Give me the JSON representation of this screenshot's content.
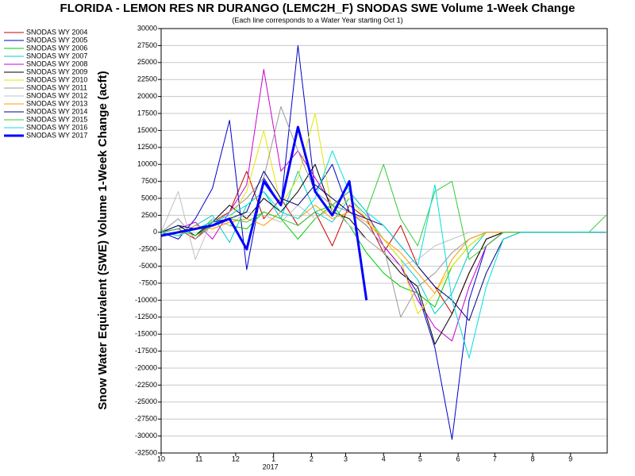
{
  "chart_data": {
    "type": "line",
    "title": "FLORIDA - LEMON RES NR DURANGO (LEMC2H_F) SNODAS SWE Volume 1-Week Change",
    "subtitle": "(Each line corresponds to a Water Year starting Oct 1)",
    "ylabel": "Snow Water Equivalent (SWE) Volume 1-Week Change (acft)",
    "year_label": "2017",
    "x": [
      0,
      14,
      28,
      42,
      56,
      70,
      84,
      98,
      112,
      126,
      140,
      154,
      168,
      182,
      196,
      210,
      224,
      238,
      252,
      266,
      280,
      294,
      308,
      322,
      336,
      350,
      364
    ],
    "xlim": [
      0,
      365
    ],
    "xticks": [
      {
        "value": 0,
        "label": "10"
      },
      {
        "value": 31,
        "label": "11"
      },
      {
        "value": 61,
        "label": "12"
      },
      {
        "value": 92,
        "label": "1"
      },
      {
        "value": 123,
        "label": "2"
      },
      {
        "value": 151,
        "label": "3"
      },
      {
        "value": 182,
        "label": "4"
      },
      {
        "value": 212,
        "label": "5"
      },
      {
        "value": 243,
        "label": "6"
      },
      {
        "value": 273,
        "label": "7"
      },
      {
        "value": 304,
        "label": "8"
      },
      {
        "value": 335,
        "label": "9"
      }
    ],
    "ylim": [
      -32500,
      30000
    ],
    "yticks": [
      30000,
      27500,
      25000,
      22500,
      20000,
      17500,
      15000,
      12500,
      10000,
      7500,
      5000,
      2500,
      0,
      -2500,
      -5000,
      -7500,
      -10000,
      -12500,
      -15000,
      -17500,
      -20000,
      -22500,
      -25000,
      -27500,
      -30000,
      -32500
    ],
    "grid": true,
    "series": [
      {
        "name": "SNODAS WY 2004",
        "color": "#cc0000",
        "values": [
          0,
          500,
          -1000,
          1500,
          3000,
          9000,
          2000,
          5000,
          1000,
          3000,
          -2000,
          4000,
          2000,
          -3000,
          1000,
          -5000,
          -8000,
          -12000,
          -6000,
          -1000,
          0,
          0,
          0,
          0,
          0,
          0,
          0
        ]
      },
      {
        "name": "SNODAS WY 2005",
        "color": "#0000cc",
        "values": [
          0,
          -1000,
          2000,
          6500,
          16500,
          -5500,
          8000,
          4000,
          27500,
          6000,
          10000,
          3000,
          1000,
          -2000,
          -5000,
          -9000,
          -17000,
          -30500,
          -10000,
          -2000,
          0,
          0,
          0,
          0,
          0,
          0,
          0
        ]
      },
      {
        "name": "SNODAS WY 2006",
        "color": "#00cc00",
        "values": [
          0,
          1000,
          -500,
          2000,
          1000,
          500,
          3000,
          2000,
          -1000,
          2000,
          4000,
          1000,
          -3000,
          -6000,
          -8000,
          -9000,
          -11000,
          -5000,
          -2000,
          0,
          0,
          0,
          0,
          0,
          0,
          0,
          0
        ]
      },
      {
        "name": "SNODAS WY 2007",
        "color": "#00cccc",
        "values": [
          0,
          -500,
          1000,
          2500,
          -1500,
          4000,
          6000,
          2000,
          9000,
          3000,
          1500,
          5000,
          2500,
          -1000,
          -4000,
          -7000,
          -12000,
          -9000,
          -3000,
          0,
          0,
          0,
          0,
          0,
          0,
          0,
          0
        ]
      },
      {
        "name": "SNODAS WY 2008",
        "color": "#cc00cc",
        "values": [
          0,
          500,
          1500,
          -1000,
          3000,
          7000,
          24000,
          9000,
          12000,
          8000,
          4000,
          6000,
          3000,
          -2000,
          -5000,
          -10000,
          -14000,
          -16000,
          -8000,
          -2000,
          0,
          0,
          0,
          0,
          0,
          0,
          0
        ]
      },
      {
        "name": "SNODAS WY 2009",
        "color": "#000000",
        "values": [
          0,
          1000,
          -500,
          1500,
          4000,
          2000,
          5000,
          3000,
          6000,
          10000,
          3000,
          2000,
          -1000,
          -3000,
          -6000,
          -8000,
          -16500,
          -12000,
          -6000,
          -1000,
          0,
          0,
          0,
          0,
          0,
          0,
          0
        ]
      },
      {
        "name": "SNODAS WY 2010",
        "color": "#e6e600",
        "values": [
          0,
          -500,
          500,
          1000,
          2000,
          6000,
          15000,
          4000,
          8000,
          17500,
          3000,
          5000,
          2000,
          -1000,
          -4000,
          -12000,
          -9000,
          -5000,
          -2000,
          0,
          0,
          0,
          0,
          0,
          0,
          0,
          0
        ]
      },
      {
        "name": "SNODAS WY 2011",
        "color": "#999999",
        "values": [
          0,
          2000,
          -1000,
          1000,
          3000,
          5000,
          8000,
          18500,
          12000,
          6000,
          4000,
          3000,
          1000,
          -2000,
          -12500,
          -8000,
          -6000,
          -3000,
          -1000,
          0,
          0,
          0,
          0,
          0,
          0,
          0,
          0
        ]
      },
      {
        "name": "SNODAS WY 2012",
        "color": "#c0c0c0",
        "values": [
          0,
          6000,
          -4000,
          2000,
          1000,
          3000,
          2500,
          1500,
          4000,
          2000,
          3500,
          1000,
          -1000,
          -3000,
          -5000,
          -4000,
          -2000,
          -1000,
          0,
          0,
          0,
          0,
          0,
          0,
          0,
          0,
          0
        ]
      },
      {
        "name": "SNODAS WY 2013",
        "color": "#ff9900",
        "values": [
          0,
          -500,
          1000,
          500,
          1500,
          2000,
          1000,
          3000,
          2000,
          4000,
          2000,
          3000,
          1500,
          -1000,
          -3000,
          -6000,
          -9000,
          -4000,
          -1000,
          0,
          0,
          0,
          0,
          0,
          0,
          0,
          0
        ]
      },
      {
        "name": "SNODAS WY 2014",
        "color": "#000080",
        "values": [
          0,
          1000,
          500,
          1500,
          2000,
          3000,
          9000,
          5000,
          4000,
          7000,
          5000,
          3000,
          2000,
          1000,
          -2000,
          -5000,
          -8000,
          -10000,
          -13000,
          -6000,
          -1000,
          0,
          0,
          0,
          0,
          0,
          0
        ]
      },
      {
        "name": "SNODAS WY 2015",
        "color": "#33cc33",
        "values": [
          0,
          500,
          -500,
          1000,
          2000,
          1500,
          3000,
          2000,
          1000,
          3000,
          4000,
          6000,
          3000,
          10000,
          2000,
          -2000,
          6000,
          7500,
          -4000,
          -2000,
          0,
          0,
          0,
          0,
          0,
          0,
          2500
        ]
      },
      {
        "name": "SNODAS WY 2016",
        "color": "#00e0e0",
        "values": [
          0,
          -500,
          500,
          1500,
          2500,
          4000,
          6000,
          3000,
          2000,
          5000,
          12000,
          6000,
          3000,
          1000,
          -2000,
          -5000,
          7000,
          -10000,
          -18500,
          -8000,
          -1000,
          0,
          0,
          0,
          0,
          0,
          0
        ]
      },
      {
        "name": "SNODAS WY 2017",
        "color": "#0000ff",
        "line_width": 3,
        "values": [
          -500,
          0,
          500,
          1000,
          2000,
          -2500,
          7500,
          4000,
          15500,
          6000,
          2500,
          7500,
          -10000,
          null,
          null,
          null,
          null,
          null,
          null,
          null,
          null,
          null,
          null,
          null,
          null,
          null,
          null
        ]
      }
    ]
  }
}
